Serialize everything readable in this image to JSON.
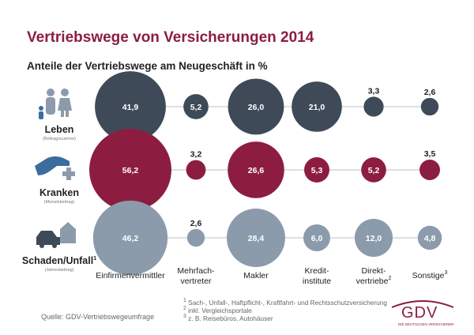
{
  "title": "Vertriebswege von Versicherungen 2014",
  "subtitle": "Anteile der Vertriebswege am Neugeschäft in %",
  "chart_data": {
    "type": "bubble",
    "title": "Vertriebswege von Versicherungen 2014",
    "subtitle": "Anteile der Vertriebswege am Neugeschäft in %",
    "categories": [
      "Einfirmenvermittler",
      "Mehrfach-\nvertreter",
      "Makler",
      "Kredit-\ninstitute",
      "Direkt-\nvertriebe",
      "Sonstige"
    ],
    "category_superscripts": [
      "",
      "",
      "",
      "",
      "2",
      "3"
    ],
    "series": [
      {
        "name": "Leben",
        "note": "(Beitragssumme)",
        "superscript": "",
        "color": "#3e4a57",
        "values": [
          41.9,
          5.2,
          26.0,
          21.0,
          3.3,
          2.6
        ],
        "labels": [
          "41,9",
          "5,2",
          "26,0",
          "21,0",
          "3,3",
          "2,6"
        ]
      },
      {
        "name": "Kranken",
        "note": "(Monatsbeitrag)",
        "superscript": "",
        "color": "#8c1d40",
        "values": [
          56.2,
          3.2,
          26.6,
          5.3,
          5.2,
          3.5
        ],
        "labels": [
          "56,2",
          "3,2",
          "26,6",
          "5,3",
          "5,2",
          "3,5"
        ]
      },
      {
        "name": "Schaden/Unfall",
        "note": "(Jahresbeitrag)",
        "superscript": "1",
        "color": "#8b9bab",
        "values": [
          46.2,
          2.6,
          28.4,
          6.0,
          12.0,
          4.8
        ],
        "labels": [
          "46,2",
          "2,6",
          "28,4",
          "6,0",
          "12,0",
          "4,8"
        ]
      }
    ]
  },
  "footnotes": [
    {
      "mark": "1",
      "text": "Sach-, Unfall-, Haftpflicht-, Kraftfahrt- und Rechtsschutzversicherung"
    },
    {
      "mark": "2",
      "text": "inkl. Vergleichsportale"
    },
    {
      "mark": "3",
      "text": "z. B. Reisebüros, Autohäuser"
    }
  ],
  "source": "Quelle: GDV-Vertriebswegeumfrage",
  "logo": {
    "text": "GDV",
    "tagline": "DIE DEUTSCHEN VERSICHERER"
  },
  "colors": {
    "accent": "#8c1d40",
    "dark": "#3e4a57",
    "light": "#8b9bab",
    "line": "#cfd5db"
  },
  "icons": [
    "family-icon",
    "hand-cross-icon",
    "car-house-icon"
  ]
}
